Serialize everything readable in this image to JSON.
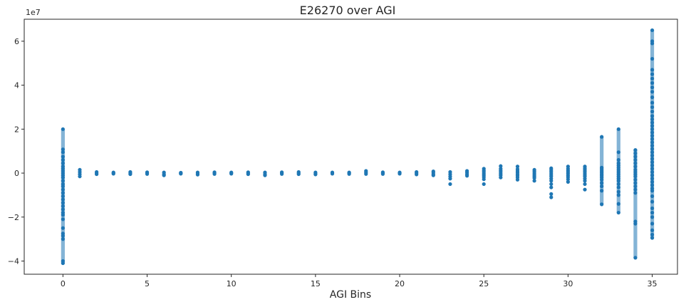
{
  "chart_data": {
    "type": "scatter",
    "title": "E26270 over AGI",
    "xlabel": "AGI Bins",
    "ylabel": "",
    "y_offset_label": "1e7",
    "xlim": [
      -2.3,
      36.5
    ],
    "ylim": [
      -4.6,
      7.0
    ],
    "x_ticks": [
      0,
      5,
      10,
      15,
      20,
      25,
      30,
      35
    ],
    "y_ticks": [
      -4,
      -2,
      0,
      2,
      4,
      6
    ],
    "marker_color": "#1f77b4",
    "grid": false,
    "legend": "none",
    "y_unit_scale": 10000000,
    "points": [
      {
        "x": 0,
        "y": [
          2.0,
          1.08,
          0.95,
          0.75,
          0.6,
          0.45,
          0.3,
          0.2,
          0.1,
          0.0,
          -0.1,
          -0.2,
          -0.35,
          -0.5,
          -0.6,
          -0.75,
          -0.9,
          -1.05,
          -1.2,
          -1.35,
          -1.5,
          -1.65,
          -1.8,
          -1.9,
          -2.1,
          -2.5,
          -2.75,
          -2.85,
          -3.0,
          -4.0,
          -4.1
        ]
      },
      {
        "x": 1,
        "y": [
          0.15,
          0.05,
          -0.05,
          -0.15
        ]
      },
      {
        "x": 2,
        "y": [
          0.05,
          0.0,
          -0.05
        ]
      },
      {
        "x": 3,
        "y": [
          0.03,
          0.0,
          -0.03
        ]
      },
      {
        "x": 4,
        "y": [
          0.05,
          0.0,
          -0.05
        ]
      },
      {
        "x": 5,
        "y": [
          0.04,
          0.0,
          -0.04
        ]
      },
      {
        "x": 6,
        "y": [
          0.03,
          -0.05,
          -0.1
        ]
      },
      {
        "x": 7,
        "y": [
          0.02,
          0.0,
          -0.03
        ]
      },
      {
        "x": 8,
        "y": [
          0.03,
          -0.03,
          -0.07
        ]
      },
      {
        "x": 9,
        "y": [
          0.04,
          0.0,
          -0.04
        ]
      },
      {
        "x": 10,
        "y": [
          0.03,
          0.0,
          -0.03
        ]
      },
      {
        "x": 11,
        "y": [
          0.04,
          0.0,
          -0.05
        ]
      },
      {
        "x": 12,
        "y": [
          0.03,
          -0.05,
          -0.1
        ]
      },
      {
        "x": 13,
        "y": [
          0.04,
          0.0,
          -0.04
        ]
      },
      {
        "x": 14,
        "y": [
          0.05,
          0.0,
          -0.05
        ]
      },
      {
        "x": 15,
        "y": [
          0.03,
          -0.03,
          -0.06
        ]
      },
      {
        "x": 16,
        "y": [
          0.03,
          0.0,
          -0.03
        ]
      },
      {
        "x": 17,
        "y": [
          0.03,
          0.0,
          -0.04
        ]
      },
      {
        "x": 18,
        "y": [
          0.1,
          0.03,
          -0.04
        ]
      },
      {
        "x": 19,
        "y": [
          0.04,
          0.0,
          -0.04
        ]
      },
      {
        "x": 20,
        "y": [
          0.03,
          0.0,
          -0.03
        ]
      },
      {
        "x": 21,
        "y": [
          0.05,
          0.0,
          -0.06
        ]
      },
      {
        "x": 22,
        "y": [
          0.08,
          0.02,
          -0.05,
          -0.1
        ]
      },
      {
        "x": 23,
        "y": [
          0.05,
          -0.05,
          -0.15,
          -0.25,
          -0.5
        ]
      },
      {
        "x": 24,
        "y": [
          0.1,
          0.03,
          -0.05,
          -0.12
        ]
      },
      {
        "x": 25,
        "y": [
          0.2,
          0.12,
          0.05,
          -0.03,
          -0.1,
          -0.18,
          -0.28,
          -0.5
        ]
      },
      {
        "x": 26,
        "y": [
          0.32,
          0.2,
          0.12,
          0.05,
          -0.03,
          -0.1,
          -0.2
        ]
      },
      {
        "x": 27,
        "y": [
          0.3,
          0.18,
          0.1,
          0.03,
          -0.05,
          -0.12,
          -0.2,
          -0.3
        ]
      },
      {
        "x": 28,
        "y": [
          0.15,
          0.08,
          0.0,
          -0.08,
          -0.15,
          -0.22,
          -0.35
        ]
      },
      {
        "x": 29,
        "y": [
          0.22,
          0.15,
          0.08,
          0.0,
          -0.08,
          -0.15,
          -0.25,
          -0.35,
          -0.5,
          -0.65,
          -0.95,
          -1.1
        ]
      },
      {
        "x": 30,
        "y": [
          0.3,
          0.2,
          0.12,
          0.05,
          -0.02,
          -0.1,
          -0.18,
          -0.28,
          -0.4
        ]
      },
      {
        "x": 31,
        "y": [
          0.3,
          0.22,
          0.15,
          0.08,
          0.0,
          -0.08,
          -0.15,
          -0.25,
          -0.35,
          -0.5,
          -0.75
        ]
      },
      {
        "x": 32,
        "y": [
          1.65,
          0.25,
          0.18,
          0.1,
          0.03,
          -0.05,
          -0.12,
          -0.2,
          -0.3,
          -0.45,
          -0.6,
          -0.8,
          -1.42
        ]
      },
      {
        "x": 33,
        "y": [
          2.0,
          0.95,
          0.6,
          0.45,
          0.35,
          0.25,
          0.15,
          0.05,
          -0.05,
          -0.15,
          -0.25,
          -0.35,
          -0.5,
          -0.65,
          -0.85,
          -1.0,
          -1.4,
          -1.8
        ]
      },
      {
        "x": 34,
        "y": [
          1.05,
          0.9,
          0.75,
          0.6,
          0.45,
          0.3,
          0.15,
          0.05,
          -0.05,
          -0.15,
          -0.3,
          -0.45,
          -0.6,
          -0.75,
          -0.9,
          -2.2,
          -2.3,
          -3.85
        ]
      },
      {
        "x": 35,
        "y": [
          6.5,
          6.0,
          5.9,
          5.2,
          4.7,
          4.5,
          4.3,
          4.1,
          3.9,
          3.7,
          3.45,
          3.2,
          3.0,
          2.8,
          2.6,
          2.45,
          2.3,
          2.15,
          2.0,
          1.85,
          1.7,
          1.55,
          1.4,
          1.25,
          1.1,
          0.95,
          0.8,
          0.65,
          0.5,
          0.35,
          0.2,
          0.05,
          -0.1,
          -0.25,
          -0.4,
          -0.55,
          -0.7,
          -0.8,
          -1.05,
          -1.3,
          -1.6,
          -1.8,
          -2.0,
          -2.3,
          -2.6,
          -2.8,
          -2.95
        ]
      }
    ]
  }
}
